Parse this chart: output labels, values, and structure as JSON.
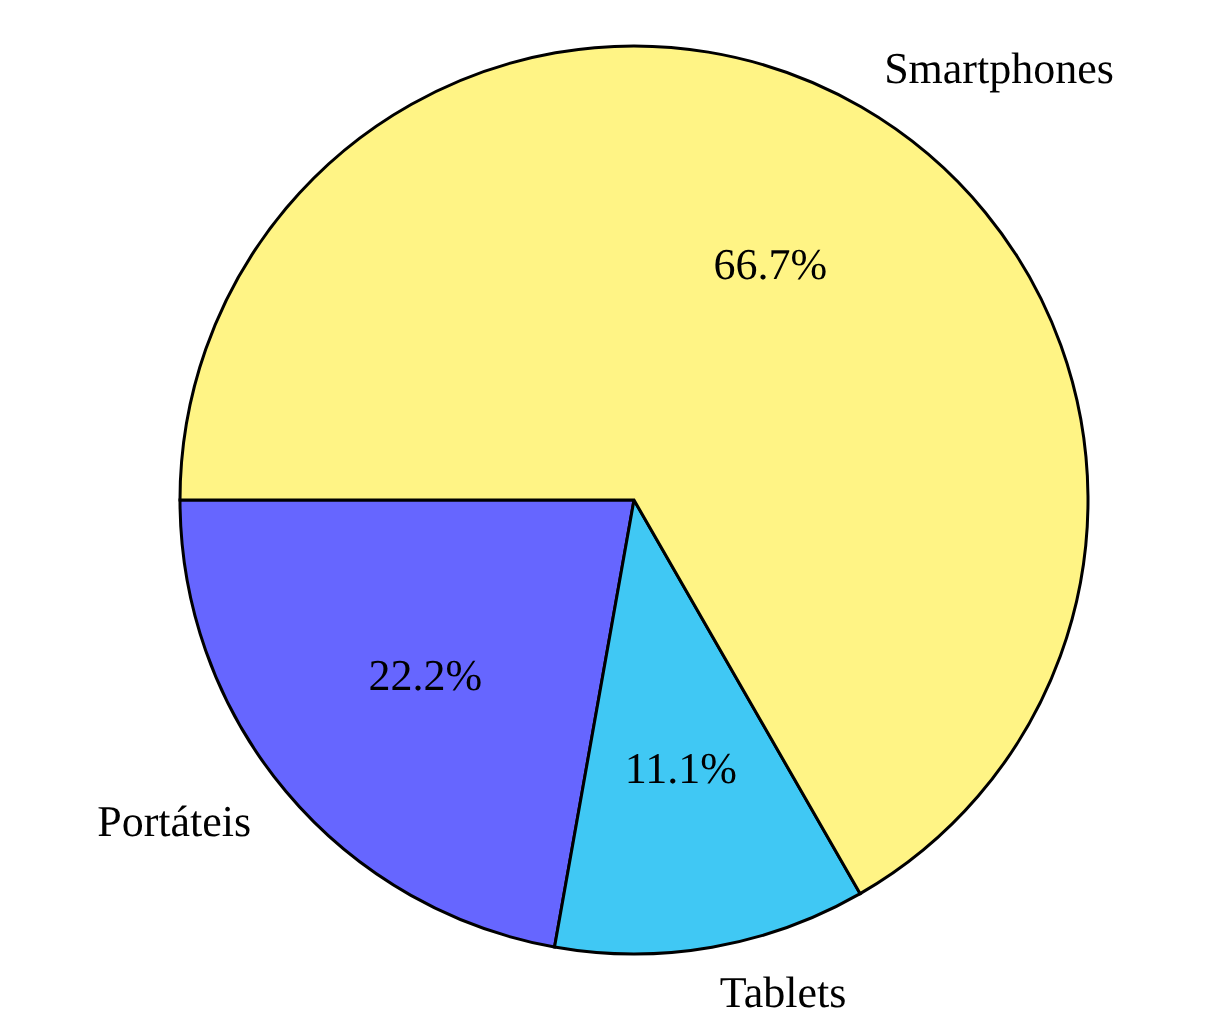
{
  "chart_data": {
    "type": "pie",
    "categories": [
      "Portáteis",
      "Tablets",
      "Smartphones"
    ],
    "values": [
      22.2,
      11.1,
      66.7
    ],
    "colors": [
      "#6666ff",
      "#40c8f4",
      "#fff485"
    ],
    "value_labels": [
      "22.2%",
      "11.1%",
      "66.7%"
    ]
  }
}
